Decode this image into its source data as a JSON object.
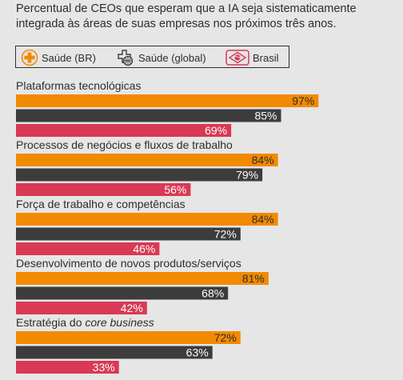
{
  "title_line1": "Percentual de CEOs que esperam que a IA seja sistematicamente",
  "title_line2": "integrada às áreas de suas empresas nos próximos três anos.",
  "legend": [
    {
      "label": "Saúde (BR)",
      "icon": "orange-plus-circle-icon",
      "color": "#f28a00"
    },
    {
      "label": "Saúde (global)",
      "icon": "globe-plus-icon",
      "color": "#3c3c3c"
    },
    {
      "label": "Brasil",
      "icon": "brazil-flag-icon",
      "color": "#d93954"
    }
  ],
  "chart_data": {
    "type": "bar",
    "orientation": "horizontal",
    "categories": [
      "Plataformas tecnológicas",
      "Processos de negócios e fluxos de trabalho",
      "Força de trabalho e competências",
      "Desenvolvimento de novos produtos/serviços",
      "Estratégia do core business"
    ],
    "category_italic_part": [
      "",
      "",
      "",
      "",
      "core business"
    ],
    "series": [
      {
        "name": "Saúde (BR)",
        "color": "#f28a00",
        "values": [
          97,
          84,
          84,
          81,
          72
        ]
      },
      {
        "name": "Saúde (global)",
        "color": "#3c3c3c",
        "values": [
          85,
          79,
          72,
          68,
          63
        ]
      },
      {
        "name": "Brasil",
        "color": "#d93954",
        "values": [
          69,
          56,
          46,
          42,
          33
        ]
      }
    ],
    "value_suffix": "%",
    "xlim": [
      0,
      100
    ],
    "grid": false
  }
}
